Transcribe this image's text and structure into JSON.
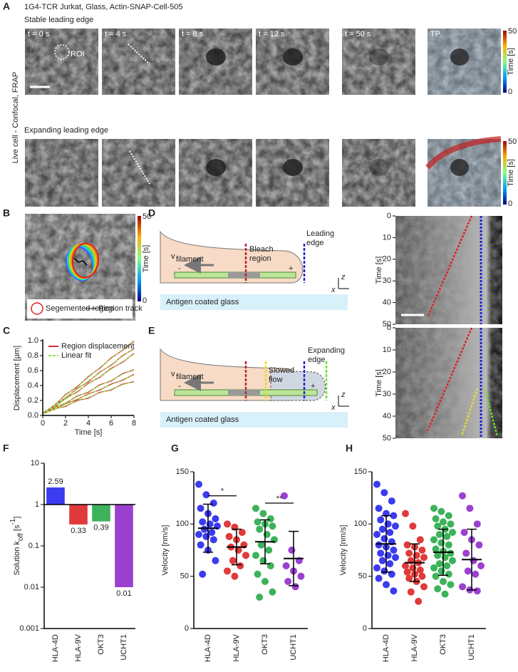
{
  "panel_labels": [
    "A",
    "B",
    "C",
    "D",
    "E",
    "F",
    "G",
    "H"
  ],
  "panel_a": {
    "title": "1G4-TCR Jurkat, Glass, Actin-SNAP-Cell-505",
    "rows": [
      "Stable leading edge",
      "Expanding leading edge"
    ],
    "side_label": "Live cell - Confocal, FRAP",
    "frames": [
      "t = 0 s",
      "t = 4 s",
      "t = 8 s",
      "t = 12 s",
      "t = 50 s",
      "TP"
    ],
    "roi": "ROI"
  },
  "colorbar": {
    "max": 50,
    "min": 0,
    "label": "Time [s]"
  },
  "panel_b": {
    "legend": [
      "Segemented region",
      "Region track"
    ]
  },
  "diagram": {
    "bleach": [
      "Bleach",
      "region"
    ],
    "leading": [
      "Leading",
      "edge"
    ],
    "slowed": [
      "Slowed",
      "flow"
    ],
    "expanding": [
      "Expanding",
      "edge"
    ],
    "velocity": "v",
    "velocity_sub": "filament",
    "glass": "Antigen coated glass",
    "axis_z": "z",
    "axis_x": "x",
    "minus": "-",
    "plus": "+"
  },
  "kymographs": {
    "ylabel": "Time [s]",
    "ylim": [
      0,
      50
    ],
    "yticks": [
      0,
      10,
      20,
      30,
      40,
      50
    ]
  },
  "chart_data": [
    {
      "type": "line",
      "panel": "C",
      "xlabel": "Time [s]",
      "ylabel": "Displacement [µm]",
      "x": [
        0,
        1,
        2,
        3,
        4,
        5,
        6,
        7,
        8
      ],
      "xlim": [
        0,
        8
      ],
      "xticks": [
        0,
        2,
        4,
        6,
        8
      ],
      "ylim": [
        0,
        1
      ],
      "yticks": [
        {
          "value": 0,
          "label": "0.0"
        },
        {
          "value": 0.2,
          "label": "0.2"
        },
        {
          "value": 0.4,
          "label": "0.4"
        },
        {
          "value": 0.6,
          "label": "0.6"
        },
        {
          "value": 0.8,
          "label": "0.8"
        },
        {
          "value": 1,
          "label": "1.0"
        }
      ],
      "legend": "upper left",
      "series": [
        {
          "name": "Region displacement",
          "color": "#e0303a",
          "values": [
            [
              0.03,
              0.13,
              0.28,
              0.38,
              0.52,
              0.63,
              0.77,
              0.87,
              0.99
            ],
            [
              0.02,
              0.14,
              0.23,
              0.36,
              0.45,
              0.58,
              0.67,
              0.8,
              0.89
            ],
            [
              0.03,
              0.11,
              0.23,
              0.31,
              0.43,
              0.51,
              0.63,
              0.71,
              0.83
            ],
            [
              0.02,
              0.11,
              0.16,
              0.26,
              0.31,
              0.41,
              0.46,
              0.56,
              0.61
            ],
            [
              0.03,
              0.08,
              0.16,
              0.21,
              0.29,
              0.34,
              0.42,
              0.47,
              0.55
            ],
            [
              0.02,
              0.09,
              0.12,
              0.2,
              0.23,
              0.31,
              0.34,
              0.42,
              0.45
            ]
          ]
        },
        {
          "name": "Linear fit",
          "color": "#8ee04a",
          "dashed": true,
          "values": [
            [
              0.02,
              0.14,
              0.27,
              0.39,
              0.51,
              0.64,
              0.76,
              0.88,
              1.0
            ],
            [
              0.02,
              0.13,
              0.24,
              0.35,
              0.46,
              0.57,
              0.68,
              0.79,
              0.9
            ],
            [
              0.02,
              0.12,
              0.22,
              0.32,
              0.42,
              0.52,
              0.62,
              0.72,
              0.82
            ],
            [
              0.02,
              0.1,
              0.17,
              0.25,
              0.32,
              0.4,
              0.47,
              0.55,
              0.62
            ],
            [
              0.02,
              0.09,
              0.15,
              0.22,
              0.28,
              0.35,
              0.41,
              0.48,
              0.54
            ],
            [
              0.02,
              0.08,
              0.13,
              0.19,
              0.24,
              0.3,
              0.35,
              0.41,
              0.46
            ]
          ]
        }
      ]
    },
    {
      "type": "bar",
      "panel": "F",
      "ylabel_parts": [
        "Solution k",
        "off",
        " [s",
        "-1",
        "]"
      ],
      "categories": [
        "HLA-4D",
        "HLA-9V",
        "OKT3",
        "UCHT1"
      ],
      "values": [
        2.59,
        0.33,
        0.39,
        0.01
      ],
      "colors": [
        "#3b3bf0",
        "#e03a3a",
        "#3cb35a",
        "#9b40d0"
      ],
      "log": true,
      "baseline": 1,
      "ylim": [
        0.001,
        10
      ],
      "yticks": [
        0.001,
        0.01,
        0.1,
        1,
        10
      ]
    },
    {
      "type": "strip",
      "panel": "G",
      "ylabel": "Velocity [nm/s]",
      "categories": [
        "HLA-4D",
        "HLA-9V",
        "OKT3",
        "UCHT1"
      ],
      "colors": [
        "#3b3bf0",
        "#e03a3a",
        "#3cb35a",
        "#9b40d0"
      ],
      "values": [
        [
          138,
          128,
          120,
          115,
          110,
          105,
          102,
          100,
          98,
          95,
          92,
          90,
          88,
          85,
          80,
          75,
          65,
          52
        ],
        [
          100,
          97,
          92,
          88,
          85,
          80,
          78,
          75,
          70,
          65,
          60,
          55,
          50
        ],
        [
          115,
          110,
          105,
          102,
          100,
          98,
          95,
          90,
          85,
          80,
          75,
          70,
          65,
          60,
          52,
          45,
          35,
          30
        ],
        [
          127,
          75,
          65,
          60,
          55,
          50,
          45,
          40
        ]
      ],
      "mean": [
        96,
        78,
        83,
        67
      ],
      "sd": [
        23,
        17,
        21,
        26
      ],
      "annotations": [
        "*",
        "**"
      ],
      "ylim": [
        0,
        150
      ],
      "yticks": [
        0,
        50,
        100,
        150
      ]
    },
    {
      "type": "strip",
      "panel": "H",
      "ylabel": "Velocity [nm/s]",
      "categories": [
        "HLA-4D",
        "HLA-9V",
        "OKT3",
        "UCHT1"
      ],
      "colors": [
        "#3b3bf0",
        "#e03a3a",
        "#3cb35a",
        "#9b40d0"
      ],
      "values": [
        [
          138,
          130,
          122,
          115,
          110,
          108,
          104,
          100,
          98,
          95,
          92,
          90,
          86,
          83,
          80,
          78,
          75,
          72,
          70,
          68,
          65,
          62,
          58,
          55,
          52,
          48,
          42,
          36
        ],
        [
          110,
          98,
          85,
          80,
          78,
          75,
          72,
          70,
          68,
          65,
          63,
          60,
          58,
          56,
          54,
          52,
          50,
          48,
          45,
          40,
          35,
          26
        ],
        [
          115,
          112,
          108,
          105,
          102,
          100,
          98,
          95,
          92,
          90,
          88,
          85,
          82,
          80,
          76,
          74,
          72,
          70,
          68,
          65,
          62,
          60,
          58,
          55,
          52,
          50,
          45,
          42,
          38,
          33
        ],
        [
          127,
          115,
          100,
          92,
          85,
          80,
          72,
          65,
          60,
          55,
          52,
          40,
          37,
          36
        ]
      ],
      "mean": [
        81,
        63,
        73,
        66
      ],
      "sd": [
        27,
        18,
        22,
        29
      ],
      "ylim": [
        0,
        150
      ],
      "yticks": [
        0,
        50,
        100,
        150
      ]
    }
  ]
}
